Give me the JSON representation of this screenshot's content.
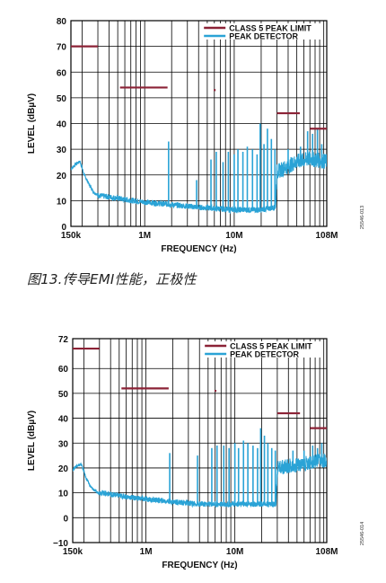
{
  "caption": "图13.传导EMI性能，正极性",
  "colors": {
    "limit": "#8b2236",
    "detector": "#2aa3d6",
    "grid": "#000000"
  },
  "chart_data": [
    {
      "type": "line",
      "xscale": "log",
      "xlim": [
        150000,
        108000000
      ],
      "ylim": [
        0,
        80
      ],
      "xticks": [
        150000,
        1000000,
        10000000,
        108000000
      ],
      "xtick_labels": [
        "150k",
        "1M",
        "10M",
        "108M"
      ],
      "yticks": [
        0,
        10,
        20,
        30,
        40,
        50,
        60,
        70,
        80
      ],
      "ytick_labels": [
        "0",
        "10",
        "20",
        "30",
        "40",
        "50",
        "60",
        "70",
        "80"
      ],
      "xlabel": "FREQUENCY (Hz)",
      "ylabel": "LEVEL (dBµV)",
      "side_label": "25546-013",
      "grid": true,
      "legend_position": "top-right",
      "series": [
        {
          "name": "CLASS 5 PEAK LIMIT",
          "color": "#8b2236",
          "segments": [
            [
              [
                150000,
                70
              ],
              [
                300000,
                70
              ]
            ],
            [
              [
                530000,
                54
              ],
              [
                1800000,
                54
              ]
            ],
            [
              [
                5900000,
                53
              ],
              [
                6200000,
                53
              ]
            ],
            [
              [
                30000000,
                44
              ],
              [
                54000000,
                44
              ]
            ],
            [
              [
                70000000,
                38
              ],
              [
                108000000,
                38
              ]
            ]
          ]
        },
        {
          "name": "PEAK DETECTOR",
          "color": "#2aa3d6",
          "baseline": [
            [
              150000,
              22
            ],
            [
              170000,
              24
            ],
            [
              190000,
              25
            ],
            [
              210000,
              20
            ],
            [
              240000,
              16
            ],
            [
              270000,
              13
            ],
            [
              310000,
              11.5
            ],
            [
              400000,
              11
            ],
            [
              600000,
              10
            ],
            [
              1000000,
              9
            ],
            [
              2000000,
              8
            ],
            [
              4000000,
              7
            ],
            [
              10000000,
              6
            ],
            [
              20000000,
              6
            ],
            [
              29000000,
              7
            ],
            [
              30000000,
              20
            ],
            [
              50000000,
              24
            ],
            [
              70000000,
              25
            ],
            [
              108000000,
              24
            ]
          ],
          "spikes": [
            [
              1850000,
              33
            ],
            [
              3800000,
              18
            ],
            [
              5500000,
              26
            ],
            [
              6300000,
              29
            ],
            [
              7500000,
              25
            ],
            [
              8600000,
              29
            ],
            [
              10000000,
              28
            ],
            [
              11000000,
              30
            ],
            [
              12500000,
              29
            ],
            [
              14000000,
              31
            ],
            [
              16000000,
              30
            ],
            [
              18000000,
              28
            ],
            [
              19500000,
              40
            ],
            [
              21500000,
              32
            ],
            [
              23500000,
              38
            ],
            [
              26000000,
              34
            ],
            [
              28500000,
              30
            ],
            [
              40000000,
              30
            ],
            [
              55000000,
              31
            ],
            [
              66000000,
              37
            ],
            [
              75000000,
              36
            ],
            [
              85000000,
              38
            ],
            [
              95000000,
              32
            ]
          ]
        }
      ]
    },
    {
      "type": "line",
      "xscale": "log",
      "xlim": [
        150000,
        108000000
      ],
      "ylim": [
        -10,
        72
      ],
      "xticks": [
        150000,
        1000000,
        10000000,
        108000000
      ],
      "xtick_labels": [
        "150k",
        "1M",
        "10M",
        "108M"
      ],
      "yticks": [
        -10,
        0,
        10,
        20,
        30,
        40,
        50,
        60,
        72
      ],
      "ytick_labels": [
        "−10",
        "0",
        "10",
        "20",
        "30",
        "40",
        "50",
        "60",
        "72"
      ],
      "xlabel": "FREQUENCY (Hz)",
      "ylabel": "LEVEL (dBµV)",
      "side_label": "25546-014",
      "grid": true,
      "legend_position": "top-right",
      "series": [
        {
          "name": "CLASS 5 PEAK LIMIT",
          "color": "#8b2236",
          "segments": [
            [
              [
                150000,
                68
              ],
              [
                300000,
                68
              ]
            ],
            [
              [
                530000,
                52
              ],
              [
                1800000,
                52
              ]
            ],
            [
              [
                5900000,
                51
              ],
              [
                6200000,
                51
              ]
            ],
            [
              [
                30000000,
                42
              ],
              [
                54000000,
                42
              ]
            ],
            [
              [
                70000000,
                36
              ],
              [
                108000000,
                36
              ]
            ]
          ]
        },
        {
          "name": "PEAK DETECTOR",
          "color": "#2aa3d6",
          "baseline": [
            [
              150000,
              19
            ],
            [
              170000,
              21
            ],
            [
              190000,
              21
            ],
            [
              210000,
              16
            ],
            [
              240000,
              12
            ],
            [
              280000,
              10
            ],
            [
              400000,
              9
            ],
            [
              600000,
              8
            ],
            [
              1000000,
              7
            ],
            [
              2000000,
              6
            ],
            [
              4000000,
              5
            ],
            [
              10000000,
              5
            ],
            [
              20000000,
              5
            ],
            [
              29000000,
              5
            ],
            [
              30000000,
              19
            ],
            [
              50000000,
              20
            ],
            [
              70000000,
              21
            ],
            [
              108000000,
              22
            ]
          ],
          "spikes": [
            [
              1850000,
              26
            ],
            [
              3800000,
              25
            ],
            [
              5500000,
              28
            ],
            [
              6300000,
              29
            ],
            [
              7500000,
              29
            ],
            [
              8600000,
              28
            ],
            [
              10000000,
              30
            ],
            [
              11000000,
              28
            ],
            [
              12500000,
              31
            ],
            [
              14000000,
              30
            ],
            [
              16000000,
              29
            ],
            [
              18000000,
              28
            ],
            [
              19500000,
              36
            ],
            [
              21500000,
              33
            ],
            [
              23500000,
              30
            ],
            [
              26000000,
              28
            ],
            [
              28500000,
              27
            ],
            [
              45000000,
              27
            ],
            [
              60000000,
              27
            ],
            [
              75000000,
              29
            ],
            [
              85000000,
              28
            ],
            [
              95000000,
              30
            ]
          ]
        }
      ]
    }
  ]
}
